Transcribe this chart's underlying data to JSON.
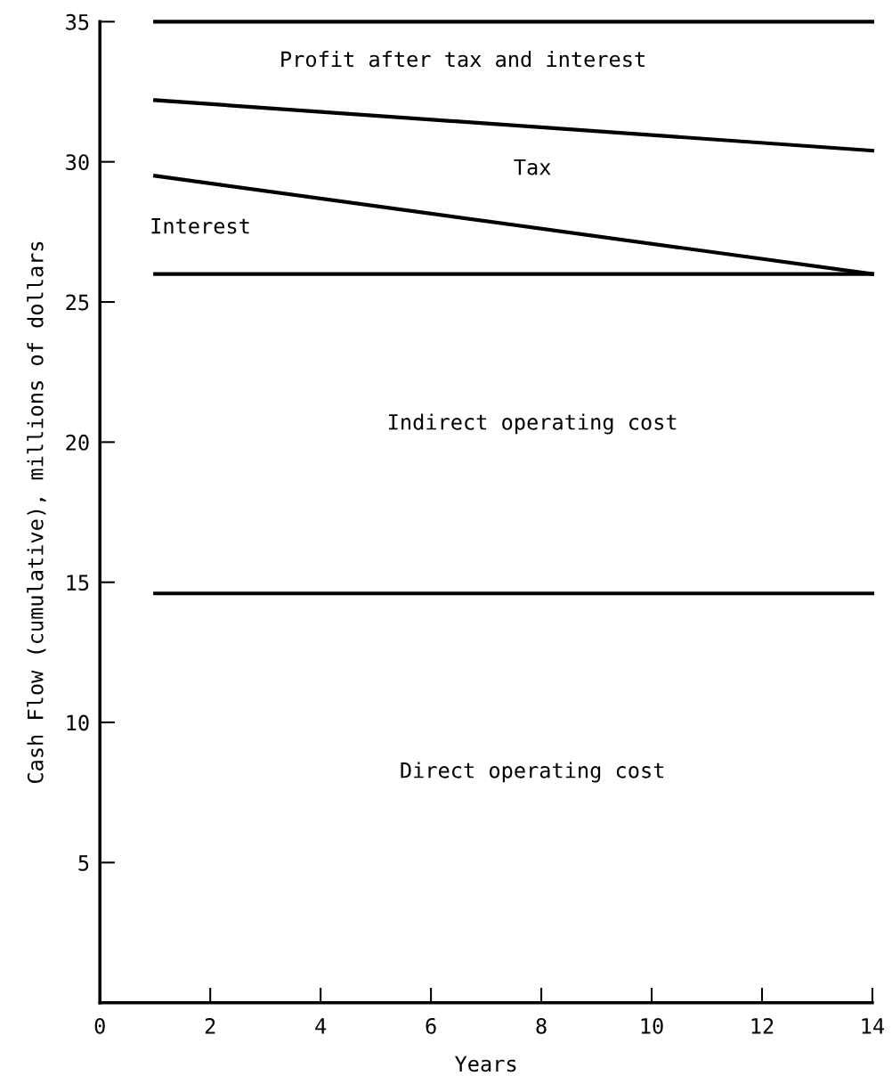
{
  "chart_data": {
    "type": "line",
    "xlabel": "Years",
    "ylabel": "Cash Flow (cumulative), millions of dollars",
    "x": [
      1,
      14
    ],
    "series": [
      {
        "color": "#000000",
        "values": [
          14.6,
          14.6
        ]
      },
      {
        "color": "#000000",
        "values": [
          26.0,
          26.0
        ]
      },
      {
        "color": "#000000",
        "values": [
          29.5,
          26.0
        ]
      },
      {
        "color": "#000000",
        "values": [
          32.2,
          30.4
        ]
      },
      {
        "color": "#000000",
        "values": [
          35.0,
          35.0
        ]
      }
    ],
    "xlim": [
      0,
      14
    ],
    "xticks": [
      0,
      2,
      4,
      6,
      8,
      10,
      12,
      14
    ],
    "ylim": [
      0,
      35
    ],
    "yticks": [
      5,
      10,
      15,
      20,
      25,
      30,
      35
    ],
    "grid": false,
    "marker": "none",
    "line_style": "solid",
    "annotations": [
      "Profit after tax and interest",
      "Tax",
      "Interest",
      "Indirect operating cost",
      "Direct operating cost"
    ]
  }
}
